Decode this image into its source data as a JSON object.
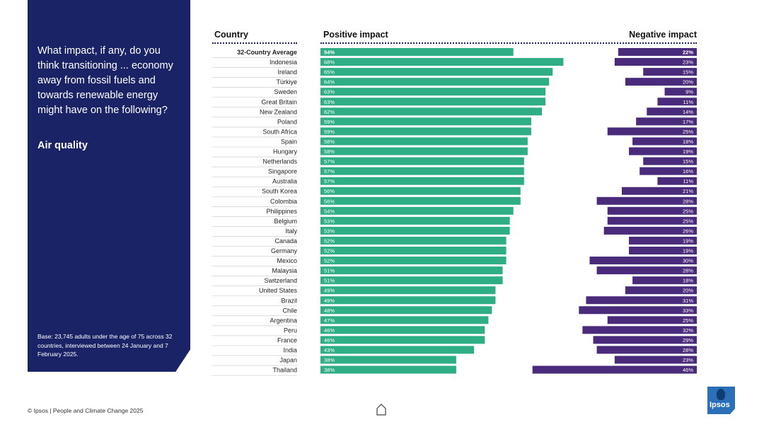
{
  "question": {
    "text": "What impact, if any, do you think transitioning ... economy away from fossil fuels and towards renewable energy might have on the following?",
    "subject": "Air quality",
    "base": "Base: 23,745 adults under the age of 75 across 32 countries, interviewed between 24 January and 7 February 2025."
  },
  "headers": {
    "country": "Country",
    "positive": "Positive impact",
    "negative": "Negative impact"
  },
  "colors": {
    "panel": "#1a2366",
    "positive": "#2fae85",
    "negative": "#4a2a7a"
  },
  "footer": "© Ipsos | People and Climate Change 2025",
  "logo_text": "Ipsos",
  "chart_data": {
    "type": "bar",
    "title": "Air quality",
    "xlabel": "",
    "ylabel": "",
    "ylim": [
      0,
      100
    ],
    "categories": [
      "32-Country Average",
      "Indonesia",
      "Ireland",
      "Türkiye",
      "Sweden",
      "Great Britain",
      "New Zealand",
      "Poland",
      "South Africa",
      "Spain",
      "Hungary",
      "Netherlands",
      "Singapore",
      "Australia",
      "South Korea",
      "Colombia",
      "Philippines",
      "Belgium",
      "Italy",
      "Canada",
      "Germany",
      "Mexico",
      "Malaysia",
      "Switzerland",
      "United States",
      "Brazil",
      "Chile",
      "Argentina",
      "Peru",
      "France",
      "India",
      "Japan",
      "Thailand"
    ],
    "series": [
      {
        "name": "Positive impact",
        "values": [
          54,
          68,
          65,
          64,
          63,
          63,
          62,
          59,
          59,
          58,
          58,
          57,
          57,
          57,
          56,
          56,
          54,
          53,
          53,
          52,
          52,
          52,
          51,
          51,
          49,
          49,
          48,
          47,
          46,
          46,
          43,
          38,
          38
        ]
      },
      {
        "name": "Negative impact",
        "values": [
          22,
          23,
          15,
          20,
          9,
          11,
          14,
          17,
          25,
          18,
          19,
          15,
          16,
          11,
          21,
          28,
          25,
          25,
          26,
          19,
          19,
          30,
          28,
          18,
          20,
          31,
          33,
          25,
          32,
          29,
          28,
          23,
          46
        ]
      }
    ]
  }
}
